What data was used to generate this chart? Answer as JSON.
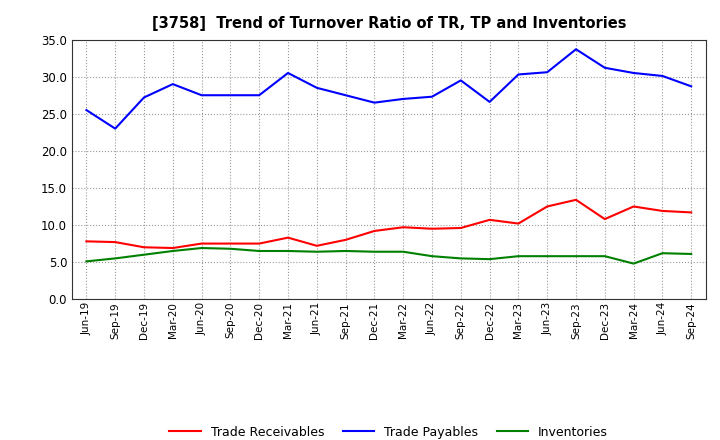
{
  "title": "[3758]  Trend of Turnover Ratio of TR, TP and Inventories",
  "x_labels": [
    "Jun-19",
    "Sep-19",
    "Dec-19",
    "Mar-20",
    "Jun-20",
    "Sep-20",
    "Dec-20",
    "Mar-21",
    "Jun-21",
    "Sep-21",
    "Dec-21",
    "Mar-22",
    "Jun-22",
    "Sep-22",
    "Dec-22",
    "Mar-23",
    "Jun-23",
    "Sep-23",
    "Dec-23",
    "Mar-24",
    "Jun-24",
    "Sep-24"
  ],
  "trade_receivables": [
    7.8,
    7.7,
    7.0,
    6.9,
    7.5,
    7.5,
    7.5,
    8.3,
    7.2,
    8.0,
    9.2,
    9.7,
    9.5,
    9.6,
    10.7,
    10.2,
    12.5,
    13.4,
    10.8,
    12.5,
    11.9,
    11.7
  ],
  "trade_payables": [
    25.5,
    23.0,
    27.2,
    29.0,
    27.5,
    27.5,
    27.5,
    30.5,
    28.5,
    27.5,
    26.5,
    27.0,
    27.3,
    29.5,
    26.6,
    30.3,
    30.6,
    33.7,
    31.2,
    30.5,
    30.1,
    28.7
  ],
  "inventories": [
    5.1,
    5.5,
    6.0,
    6.5,
    6.9,
    6.8,
    6.5,
    6.5,
    6.4,
    6.5,
    6.4,
    6.4,
    5.8,
    5.5,
    5.4,
    5.8,
    5.8,
    5.8,
    5.8,
    4.8,
    6.2,
    6.1
  ],
  "tr_color": "#ff0000",
  "tp_color": "#0000ff",
  "inv_color": "#008000",
  "ylim": [
    0,
    35
  ],
  "yticks": [
    0.0,
    5.0,
    10.0,
    15.0,
    20.0,
    25.0,
    30.0,
    35.0
  ],
  "legend_labels": [
    "Trade Receivables",
    "Trade Payables",
    "Inventories"
  ],
  "bg_color": "#ffffff",
  "grid_color": "#aaaaaa"
}
